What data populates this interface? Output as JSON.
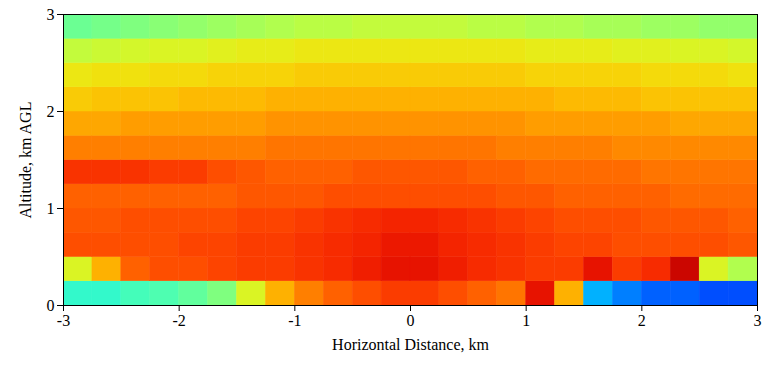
{
  "chart_data": {
    "type": "heatmap",
    "xlabel": "Horizontal Distance, km",
    "ylabel": "Altitude, km AGL",
    "xlim": [
      -3,
      3
    ],
    "xticks": [
      -3,
      -2,
      -1,
      0,
      1,
      2,
      3
    ],
    "ylim": [
      0,
      3
    ],
    "yticks": [
      0,
      1,
      2,
      3
    ],
    "x_edges": [
      -3,
      -2.75,
      -2.5,
      -2.25,
      -2,
      -1.75,
      -1.5,
      -1.25,
      -1,
      -0.75,
      -0.5,
      -0.25,
      0,
      0.25,
      0.5,
      0.75,
      1,
      1.25,
      1.5,
      1.75,
      2,
      2.25,
      2.5,
      2.75,
      3
    ],
    "y_edges": [
      0,
      0.25,
      0.5,
      0.75,
      1,
      1.25,
      1.5,
      1.75,
      2,
      2.25,
      2.5,
      2.75,
      3
    ],
    "color_range": [
      0,
      1
    ],
    "values": [
      [
        0.42,
        0.42,
        0.44,
        0.45,
        0.47,
        0.5,
        0.6,
        0.7,
        0.75,
        0.78,
        0.8,
        0.82,
        0.82,
        0.8,
        0.78,
        0.76,
        0.88,
        0.7,
        0.3,
        0.25,
        0.22,
        0.22,
        0.2,
        0.2
      ],
      [
        0.6,
        0.7,
        0.78,
        0.8,
        0.8,
        0.81,
        0.82,
        0.82,
        0.83,
        0.84,
        0.86,
        0.88,
        0.88,
        0.86,
        0.84,
        0.83,
        0.82,
        0.82,
        0.88,
        0.82,
        0.84,
        0.92,
        0.6,
        0.55
      ],
      [
        0.8,
        0.8,
        0.8,
        0.8,
        0.81,
        0.81,
        0.82,
        0.82,
        0.83,
        0.84,
        0.85,
        0.87,
        0.87,
        0.85,
        0.84,
        0.83,
        0.82,
        0.81,
        0.81,
        0.8,
        0.8,
        0.8,
        0.8,
        0.79
      ],
      [
        0.79,
        0.79,
        0.8,
        0.8,
        0.8,
        0.8,
        0.81,
        0.81,
        0.82,
        0.83,
        0.84,
        0.85,
        0.85,
        0.84,
        0.83,
        0.82,
        0.81,
        0.8,
        0.8,
        0.8,
        0.79,
        0.79,
        0.79,
        0.78
      ],
      [
        0.78,
        0.78,
        0.78,
        0.78,
        0.78,
        0.78,
        0.79,
        0.79,
        0.79,
        0.8,
        0.8,
        0.8,
        0.8,
        0.8,
        0.8,
        0.79,
        0.79,
        0.78,
        0.78,
        0.78,
        0.78,
        0.77,
        0.77,
        0.77
      ],
      [
        0.83,
        0.83,
        0.83,
        0.82,
        0.82,
        0.8,
        0.79,
        0.78,
        0.78,
        0.78,
        0.79,
        0.79,
        0.79,
        0.79,
        0.78,
        0.78,
        0.77,
        0.77,
        0.77,
        0.77,
        0.76,
        0.76,
        0.76,
        0.76
      ],
      [
        0.75,
        0.75,
        0.75,
        0.75,
        0.75,
        0.75,
        0.75,
        0.76,
        0.76,
        0.76,
        0.76,
        0.76,
        0.76,
        0.76,
        0.76,
        0.75,
        0.75,
        0.75,
        0.75,
        0.74,
        0.74,
        0.74,
        0.74,
        0.74
      ],
      [
        0.71,
        0.71,
        0.72,
        0.72,
        0.72,
        0.72,
        0.72,
        0.73,
        0.73,
        0.73,
        0.73,
        0.73,
        0.73,
        0.73,
        0.73,
        0.73,
        0.72,
        0.72,
        0.72,
        0.72,
        0.72,
        0.71,
        0.71,
        0.71
      ],
      [
        0.67,
        0.68,
        0.68,
        0.68,
        0.69,
        0.69,
        0.69,
        0.7,
        0.7,
        0.7,
        0.7,
        0.7,
        0.7,
        0.7,
        0.7,
        0.7,
        0.7,
        0.69,
        0.69,
        0.69,
        0.68,
        0.68,
        0.68,
        0.68
      ],
      [
        0.63,
        0.64,
        0.64,
        0.65,
        0.65,
        0.66,
        0.66,
        0.66,
        0.67,
        0.67,
        0.67,
        0.67,
        0.67,
        0.67,
        0.67,
        0.67,
        0.66,
        0.66,
        0.66,
        0.66,
        0.65,
        0.65,
        0.65,
        0.64
      ],
      [
        0.57,
        0.58,
        0.59,
        0.6,
        0.6,
        0.61,
        0.62,
        0.62,
        0.63,
        0.63,
        0.63,
        0.63,
        0.63,
        0.63,
        0.63,
        0.63,
        0.62,
        0.62,
        0.62,
        0.61,
        0.61,
        0.6,
        0.6,
        0.59
      ],
      [
        0.48,
        0.49,
        0.5,
        0.51,
        0.52,
        0.53,
        0.54,
        0.55,
        0.56,
        0.56,
        0.57,
        0.57,
        0.57,
        0.57,
        0.56,
        0.56,
        0.55,
        0.55,
        0.54,
        0.54,
        0.53,
        0.53,
        0.52,
        0.52
      ]
    ]
  }
}
